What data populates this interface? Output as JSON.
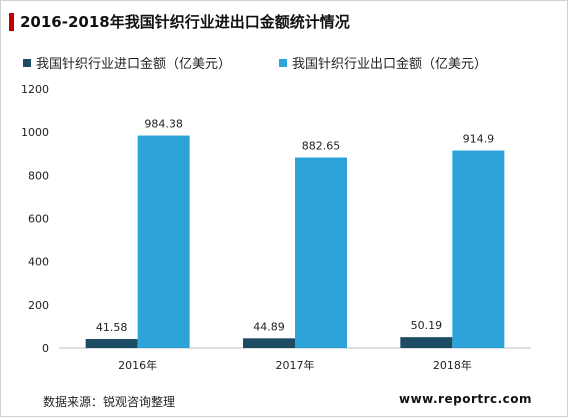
{
  "title": "2016-2018年我国针织行业进出口金额统计情况",
  "colors": {
    "title_accent": "#c00000",
    "series_import": "#1d4b64",
    "series_export": "#2ea3d9",
    "axis": "#bfbfbf",
    "text": "#222222"
  },
  "chart_data": {
    "type": "bar",
    "categories": [
      "2016年",
      "2017年",
      "2018年"
    ],
    "series": [
      {
        "name": "我国针织行业进口金额（亿美元）",
        "values": [
          41.58,
          44.89,
          50.19
        ]
      },
      {
        "name": "我国针织行业出口金额（亿美元）",
        "values": [
          984.38,
          882.65,
          914.9
        ]
      }
    ],
    "data_labels": [
      [
        "41.58",
        "44.89",
        "50.19"
      ],
      [
        "984.38",
        "882.65",
        "914.9"
      ]
    ],
    "yticks": [
      "0",
      "200",
      "400",
      "600",
      "800",
      "1000",
      "1200"
    ],
    "ylim": [
      0,
      1200
    ],
    "grid": false,
    "legend_position": "top-left",
    "xlabel": "",
    "ylabel": ""
  },
  "source": "数据来源：锐观咨询整理",
  "watermark": "www.reportrc.com"
}
